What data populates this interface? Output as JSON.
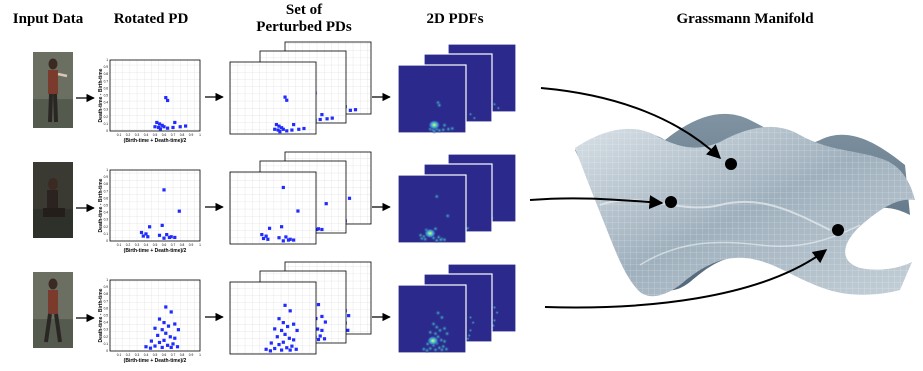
{
  "headers": {
    "input_data": "Input Data",
    "rotated_pd": "Rotated PD",
    "perturbed_line1": "Set of",
    "perturbed_line2": "Perturbed PDs",
    "pdfs_2d": "2D PDFs",
    "grassmann": "Grassmann Manifold"
  },
  "pd_axes": {
    "xlabel": "(Birth-time + Death-time)/2",
    "ylabel": "Death-time - Birth-time",
    "ticks": [
      "0.1",
      "0.2",
      "0.3",
      "0.4",
      "0.5",
      "0.6",
      "0.7",
      "0.8",
      "0.9",
      "1"
    ],
    "ticks_y": [
      "0",
      "0.1",
      "0.2",
      "0.3",
      "0.4",
      "0.5",
      "0.6",
      "0.7",
      "0.8",
      "0.9",
      "1"
    ]
  },
  "rows": [
    {
      "name": "row-1",
      "pose": "standing",
      "points": [
        [
          0.62,
          0.47
        ],
        [
          0.64,
          0.43
        ],
        [
          0.72,
          0.12
        ],
        [
          0.52,
          0.12
        ],
        [
          0.55,
          0.1
        ],
        [
          0.58,
          0.08
        ],
        [
          0.5,
          0.06
        ],
        [
          0.54,
          0.05
        ],
        [
          0.6,
          0.06
        ],
        [
          0.7,
          0.05
        ],
        [
          0.78,
          0.06
        ],
        [
          0.84,
          0.07
        ],
        [
          0.56,
          0.03
        ],
        [
          0.64,
          0.04
        ]
      ]
    },
    {
      "name": "row-2",
      "pose": "sitting",
      "points": [
        [
          0.6,
          0.72
        ],
        [
          0.77,
          0.42
        ],
        [
          0.58,
          0.22
        ],
        [
          0.44,
          0.2
        ],
        [
          0.35,
          0.12
        ],
        [
          0.4,
          0.1
        ],
        [
          0.37,
          0.07
        ],
        [
          0.42,
          0.06
        ],
        [
          0.55,
          0.08
        ],
        [
          0.63,
          0.09
        ],
        [
          0.68,
          0.06
        ],
        [
          0.72,
          0.05
        ],
        [
          0.66,
          0.05
        ],
        [
          0.6,
          0.04
        ]
      ]
    },
    {
      "name": "row-3",
      "pose": "walking",
      "points": [
        [
          0.62,
          0.62
        ],
        [
          0.68,
          0.55
        ],
        [
          0.55,
          0.45
        ],
        [
          0.6,
          0.4
        ],
        [
          0.72,
          0.38
        ],
        [
          0.65,
          0.35
        ],
        [
          0.5,
          0.32
        ],
        [
          0.58,
          0.3
        ],
        [
          0.76,
          0.3
        ],
        [
          0.62,
          0.25
        ],
        [
          0.53,
          0.22
        ],
        [
          0.67,
          0.2
        ],
        [
          0.72,
          0.18
        ],
        [
          0.6,
          0.15
        ],
        [
          0.46,
          0.14
        ],
        [
          0.55,
          0.12
        ],
        [
          0.7,
          0.1
        ],
        [
          0.64,
          0.08
        ],
        [
          0.5,
          0.07
        ],
        [
          0.4,
          0.06
        ],
        [
          0.58,
          0.05
        ],
        [
          0.75,
          0.06
        ],
        [
          0.68,
          0.05
        ],
        [
          0.45,
          0.04
        ]
      ]
    }
  ],
  "colors": {
    "point": "#1f2bff",
    "pdf_bg": "#2b2a8c",
    "manifold": "#a8b6c2"
  }
}
